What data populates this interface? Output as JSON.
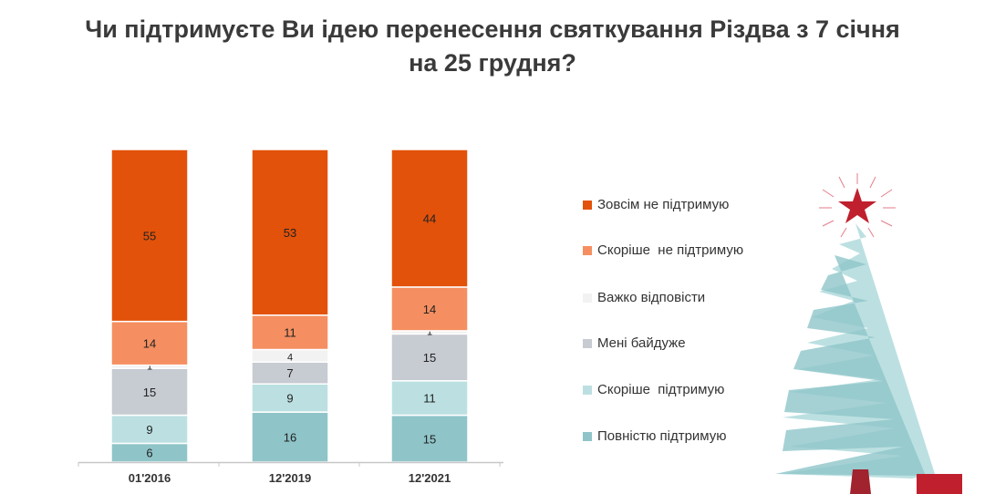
{
  "chart_data": {
    "type": "bar",
    "stacked": true,
    "title": "Чи підтримуєте Ви ідею перенесення святкування Різдва з 7 січня на 25 грудня?",
    "title_lines": [
      "Чи підтримуєте Ви ідею перенесення святкування Різдва з 7 січня",
      "на 25 грудня?"
    ],
    "categories": [
      "01'2016",
      "12'2019",
      "12'2021"
    ],
    "ylim": [
      0,
      100
    ],
    "xlabel": "",
    "ylabel": "",
    "grid": false,
    "legend_position": "right",
    "series": [
      {
        "name": "Повністю підтримую",
        "color": "#8FC5C9",
        "values": [
          6,
          16,
          15
        ]
      },
      {
        "name": "Скоріше  підтримую",
        "color": "#BCE0E1",
        "values": [
          9,
          9,
          11
        ]
      },
      {
        "name": "Мені байдуже",
        "color": "#C7CBD2",
        "values": [
          15,
          7,
          15
        ]
      },
      {
        "name": "Важко відповісти",
        "color": "#F2F2F2",
        "values": [
          1,
          4,
          1
        ]
      },
      {
        "name": "Скоріше  не підтримую",
        "color": "#F58F61",
        "values": [
          14,
          11,
          14
        ]
      },
      {
        "name": "Зовсім не підтримую",
        "color": "#E2520A",
        "values": [
          55,
          53,
          44
        ]
      }
    ]
  }
}
